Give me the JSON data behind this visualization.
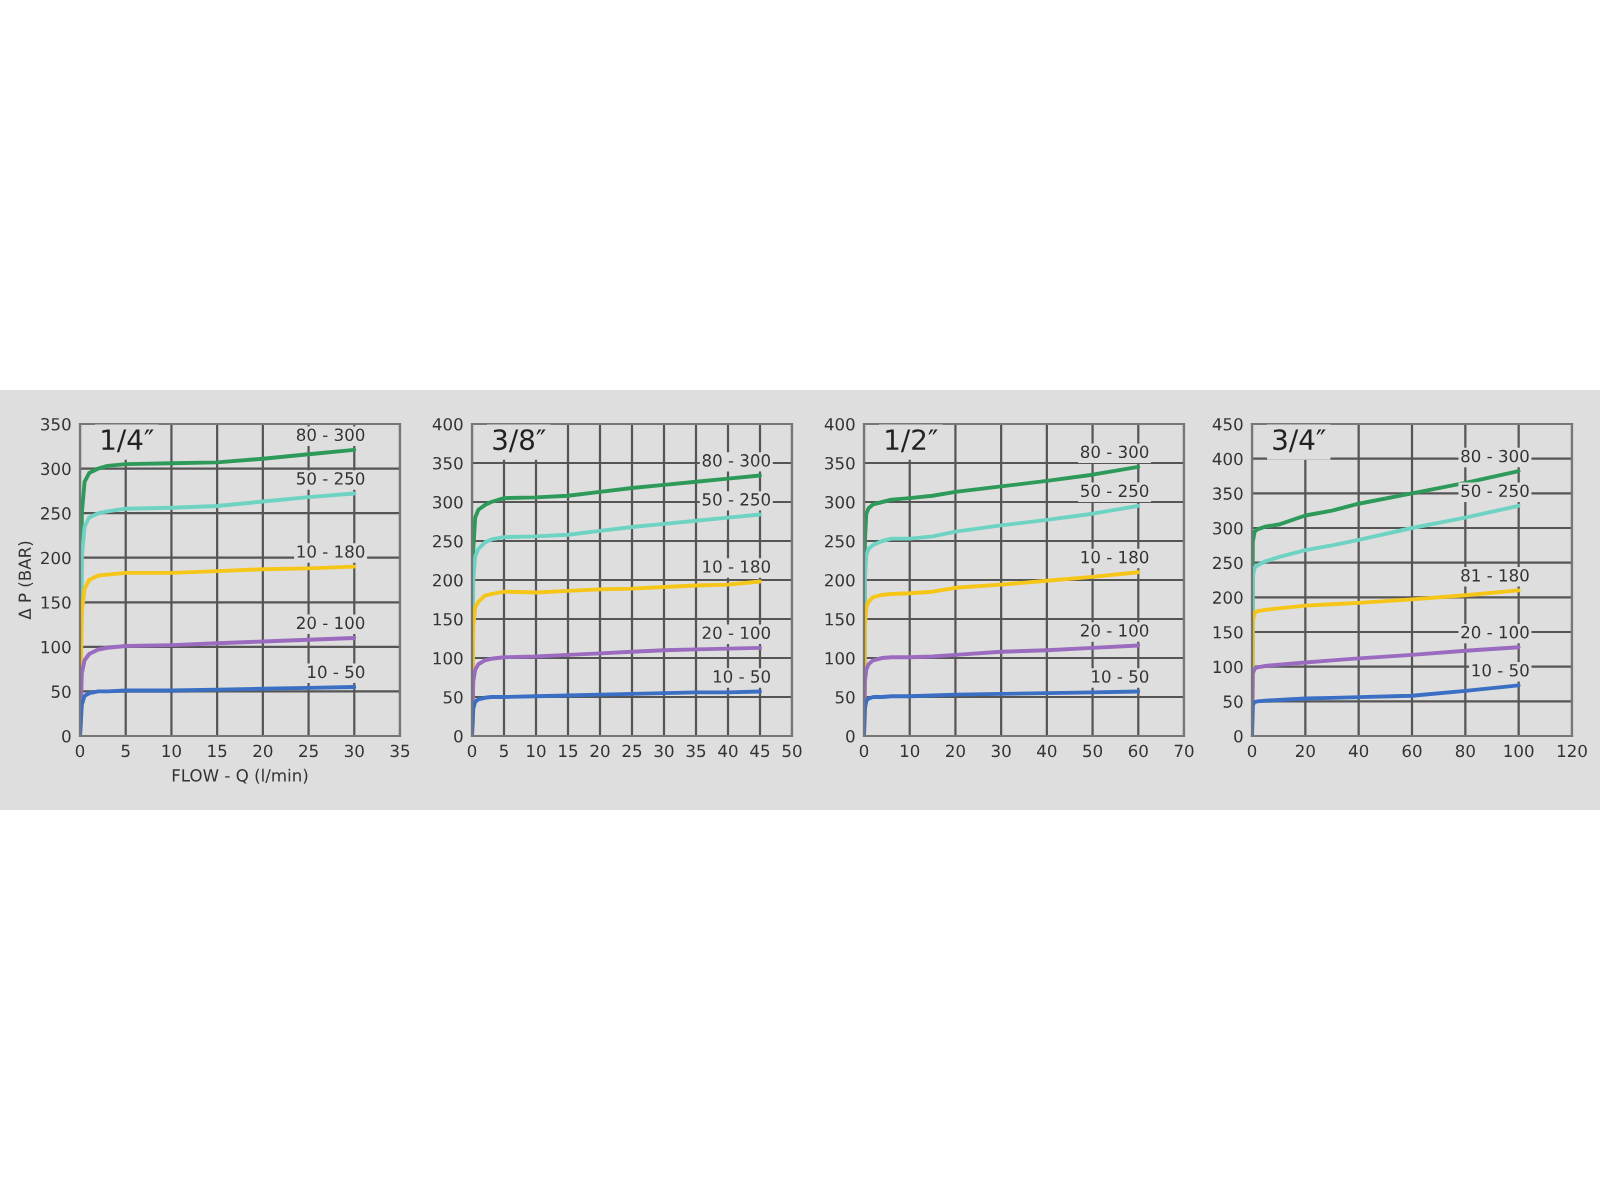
{
  "chart_data": [
    {
      "type": "line",
      "title": "1/4″",
      "xlabel": "FLOW - Q (l/min)",
      "ylabel": "Δ P (BAR)",
      "xlim": [
        0,
        35
      ],
      "ylim": [
        0,
        350
      ],
      "xticks": [
        0,
        5,
        10,
        15,
        20,
        25,
        30,
        35
      ],
      "yticks": [
        0,
        50,
        100,
        150,
        200,
        250,
        300,
        350
      ],
      "grid": true,
      "legend": false,
      "x": [
        0,
        0.2,
        0.5,
        1,
        2,
        3,
        5,
        10,
        15,
        20,
        25,
        30
      ],
      "series": [
        {
          "name": "80 - 300",
          "color": "#2e9a5a",
          "values": [
            0,
            250,
            285,
            295,
            300,
            303,
            305,
            306,
            307,
            311,
            316,
            321
          ]
        },
        {
          "name": "50 - 250",
          "color": "#6fd3c4",
          "values": [
            0,
            200,
            235,
            245,
            250,
            252,
            255,
            256,
            258,
            263,
            268,
            272
          ]
        },
        {
          "name": "10 - 180",
          "color": "#f5c518",
          "values": [
            0,
            140,
            165,
            175,
            180,
            181,
            183,
            183,
            185,
            187,
            188,
            190
          ]
        },
        {
          "name": "20 - 100",
          "color": "#9b6bbf",
          "values": [
            0,
            70,
            85,
            92,
            97,
            99,
            101,
            102,
            104,
            106,
            108,
            110
          ]
        },
        {
          "name": "10 - 50",
          "color": "#3a6fc4",
          "values": [
            0,
            35,
            45,
            48,
            50,
            50,
            51,
            51,
            52,
            53,
            54,
            55
          ]
        }
      ]
    },
    {
      "type": "line",
      "title": "3/8″",
      "xlim": [
        0,
        50
      ],
      "ylim": [
        0,
        400
      ],
      "xticks": [
        0,
        5,
        10,
        15,
        20,
        25,
        30,
        35,
        40,
        45,
        50
      ],
      "yticks": [
        0,
        50,
        100,
        150,
        200,
        250,
        300,
        350,
        400
      ],
      "grid": true,
      "legend": false,
      "x": [
        0,
        0.2,
        0.5,
        1,
        2,
        3,
        5,
        10,
        15,
        20,
        25,
        30,
        35,
        40,
        45
      ],
      "series": [
        {
          "name": "80 - 300",
          "color": "#2e9a5a",
          "values": [
            0,
            240,
            280,
            290,
            296,
            300,
            305,
            306,
            308,
            313,
            318,
            322,
            326,
            330,
            334
          ]
        },
        {
          "name": "50 - 250",
          "color": "#6fd3c4",
          "values": [
            0,
            200,
            230,
            240,
            248,
            252,
            255,
            256,
            258,
            263,
            268,
            272,
            276,
            280,
            284
          ]
        },
        {
          "name": "10 - 180",
          "color": "#f5c518",
          "values": [
            0,
            140,
            165,
            172,
            180,
            182,
            185,
            184,
            186,
            188,
            189,
            191,
            193,
            194,
            198
          ]
        },
        {
          "name": "20 - 100",
          "color": "#9b6bbf",
          "values": [
            0,
            70,
            85,
            92,
            97,
            99,
            101,
            102,
            104,
            106,
            108,
            110,
            111,
            112,
            113
          ]
        },
        {
          "name": "10 - 50",
          "color": "#3a6fc4",
          "values": [
            0,
            35,
            44,
            47,
            49,
            50,
            50,
            51,
            52,
            53,
            54,
            55,
            56,
            56,
            57
          ]
        }
      ]
    },
    {
      "type": "line",
      "title": "1/2″",
      "xlim": [
        0,
        70
      ],
      "ylim": [
        0,
        400
      ],
      "xticks": [
        0,
        10,
        20,
        30,
        40,
        50,
        60,
        70
      ],
      "yticks": [
        0,
        50,
        100,
        150,
        200,
        250,
        300,
        350,
        400
      ],
      "grid": true,
      "legend": false,
      "x": [
        0,
        0.2,
        0.5,
        1,
        2,
        4,
        6,
        10,
        15,
        20,
        30,
        40,
        50,
        60
      ],
      "series": [
        {
          "name": "80 - 300",
          "color": "#2e9a5a",
          "values": [
            0,
            250,
            285,
            292,
            297,
            300,
            303,
            305,
            308,
            313,
            320,
            327,
            335,
            345
          ]
        },
        {
          "name": "50 - 250",
          "color": "#6fd3c4",
          "values": [
            0,
            200,
            232,
            240,
            245,
            250,
            253,
            253,
            256,
            262,
            270,
            277,
            285,
            295
          ]
        },
        {
          "name": "10 - 180",
          "color": "#f5c518",
          "values": [
            0,
            140,
            165,
            172,
            178,
            181,
            182,
            183,
            185,
            190,
            194,
            199,
            204,
            210
          ]
        },
        {
          "name": "20 - 100",
          "color": "#9b6bbf",
          "values": [
            0,
            70,
            85,
            92,
            97,
            100,
            101,
            101,
            102,
            104,
            108,
            110,
            113,
            116
          ]
        },
        {
          "name": "10 - 50",
          "color": "#3a6fc4",
          "values": [
            0,
            35,
            45,
            48,
            50,
            50,
            51,
            51,
            52,
            53,
            54,
            55,
            56,
            57
          ]
        }
      ]
    },
    {
      "type": "line",
      "title": "3/4″",
      "xlim": [
        0,
        120
      ],
      "ylim": [
        0,
        450
      ],
      "xticks": [
        0,
        20,
        40,
        60,
        80,
        100,
        120
      ],
      "yticks": [
        0,
        50,
        100,
        150,
        200,
        250,
        300,
        350,
        400,
        450
      ],
      "grid": true,
      "legend": false,
      "x": [
        0,
        0.3,
        1,
        2,
        5,
        10,
        20,
        30,
        40,
        60,
        80,
        100
      ],
      "series": [
        {
          "name": "80 - 300",
          "color": "#2e9a5a",
          "values": [
            0,
            280,
            295,
            298,
            302,
            305,
            318,
            325,
            335,
            350,
            365,
            382
          ]
        },
        {
          "name": "50 - 250",
          "color": "#6fd3c4",
          "values": [
            0,
            230,
            243,
            246,
            252,
            258,
            268,
            275,
            283,
            300,
            315,
            332
          ]
        },
        {
          "name": "81 - 180",
          "color": "#f5c518",
          "values": [
            0,
            165,
            178,
            180,
            182,
            184,
            188,
            190,
            192,
            197,
            203,
            210
          ]
        },
        {
          "name": "20 - 100",
          "color": "#9b6bbf",
          "values": [
            0,
            90,
            97,
            99,
            101,
            103,
            106,
            109,
            112,
            117,
            123,
            128
          ]
        },
        {
          "name": "10 - 50",
          "color": "#3a6fc4",
          "values": [
            0,
            45,
            49,
            50,
            51,
            52,
            54,
            55,
            56,
            58,
            65,
            73
          ]
        }
      ]
    }
  ]
}
